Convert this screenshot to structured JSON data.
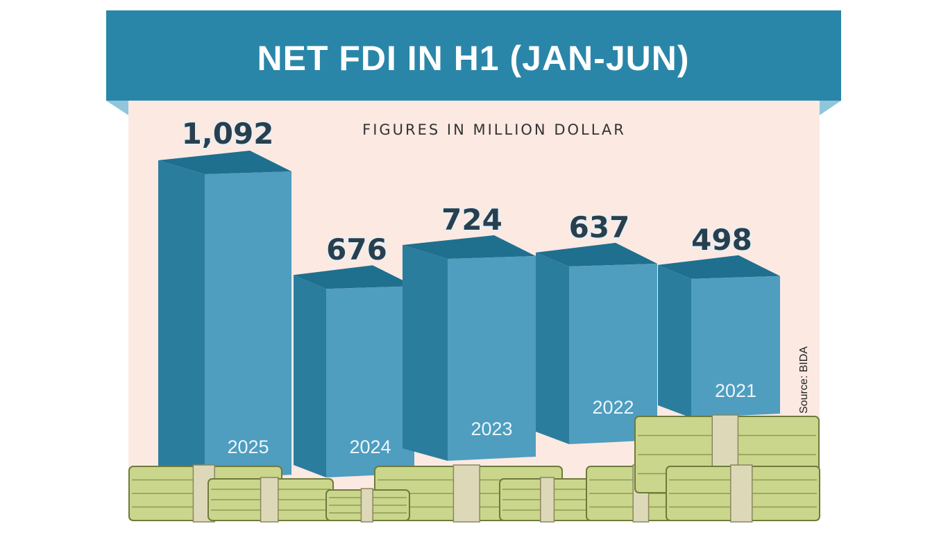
{
  "chart_data": {
    "type": "bar",
    "title": "NET FDI IN H1 (JAN-JUN)",
    "subtitle": "FIGURES IN MILLION DOLLAR",
    "categories": [
      "2025",
      "2024",
      "2023",
      "2022",
      "2021"
    ],
    "values": [
      1092,
      676,
      724,
      637,
      498
    ],
    "value_labels": [
      "1,092",
      "676",
      "724",
      "637",
      "498"
    ],
    "source": "Source: BIDA",
    "legend": "none",
    "grid": false,
    "colors": {
      "banner": "#2a86a8",
      "banner_fold": "#8fc6dc",
      "background": "#fbe9e2",
      "bar_front": "#4f9dbf",
      "bar_side": "#2b7d9e",
      "bar_top": "#1f6f8f",
      "cash": "#c9d68c",
      "cash_band": "#ddd9b8"
    }
  }
}
